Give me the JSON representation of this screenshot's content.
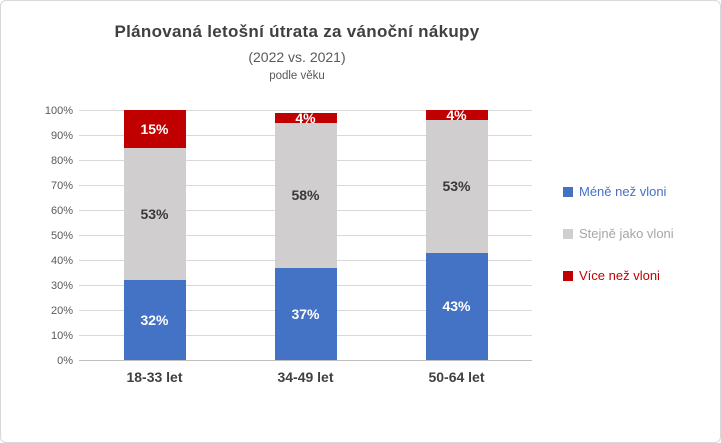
{
  "title": "Plánovaná letošní útrata za vánoční nákupy",
  "subtitle": "(2022 vs. 2021)",
  "subtitle2": "podle věku",
  "colors": {
    "blue": "#4472C4",
    "gray": "#D0CECE",
    "red": "#C00000",
    "title_text": "#404040",
    "axis_text": "#595959",
    "category_text": "#404040",
    "gridline": "#D9D9D9",
    "axis_line": "#BFBFBF",
    "border": "#D9D9D9",
    "gray_legend_text": "#A6A6A6"
  },
  "chart_data": {
    "type": "bar",
    "stacked": true,
    "title": "Plánovaná letošní útrata za vánoční nákupy",
    "subtitle": "(2022 vs. 2021)",
    "subtitle2": "podle věku",
    "categories": [
      "18-33 let",
      "34-49 let",
      "50-64 let"
    ],
    "series": [
      {
        "name": "Méně než vloni",
        "color": "#4472C4",
        "label_color": "#FFFFFF",
        "legend_text_color": "#4472C4",
        "values": [
          32,
          37,
          43
        ]
      },
      {
        "name": "Stejně jako vloni",
        "color": "#D0CECE",
        "label_color": "#3B3838",
        "legend_text_color": "#A6A6A6",
        "values": [
          53,
          58,
          53
        ]
      },
      {
        "name": "Více než vloni",
        "color": "#C00000",
        "label_color": "#FFFFFF",
        "legend_text_color": "#C00000",
        "values": [
          15,
          4,
          4
        ]
      }
    ],
    "value_suffix": "%",
    "yticks": [
      "0%",
      "10%",
      "20%",
      "30%",
      "40%",
      "50%",
      "60%",
      "70%",
      "80%",
      "90%",
      "100%"
    ],
    "ylim": [
      0,
      100
    ],
    "grid": true,
    "legend_position": "right"
  }
}
